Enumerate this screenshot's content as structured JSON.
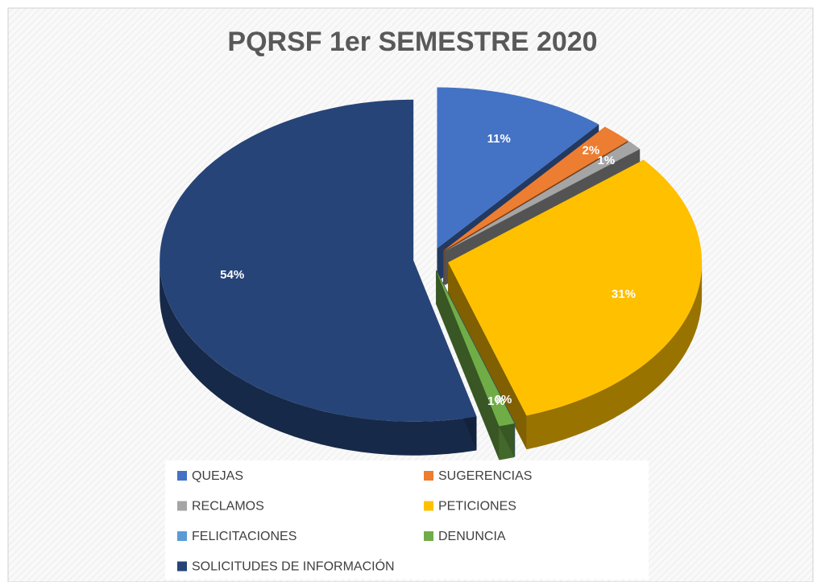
{
  "chart_data": {
    "type": "pie",
    "title": "PQRSF  1er SEMESTRE 2020",
    "categories": [
      "QUEJAS",
      "SUGERENCIAS",
      "RECLAMOS",
      "PETICIONES",
      "FELICITACIONES",
      "DENUNCIA",
      "SOLICITUDES DE INFORMACIÓN"
    ],
    "values": [
      11,
      2,
      1,
      31,
      0,
      1,
      54
    ],
    "value_labels": [
      "11%",
      "2%",
      "1%",
      "31%",
      "0%",
      "1%",
      "54%"
    ],
    "colors": [
      "#4472c4",
      "#ed7d31",
      "#a5a5a5",
      "#ffc000",
      "#5b9bd5",
      "#70ad47",
      "#264478"
    ]
  }
}
